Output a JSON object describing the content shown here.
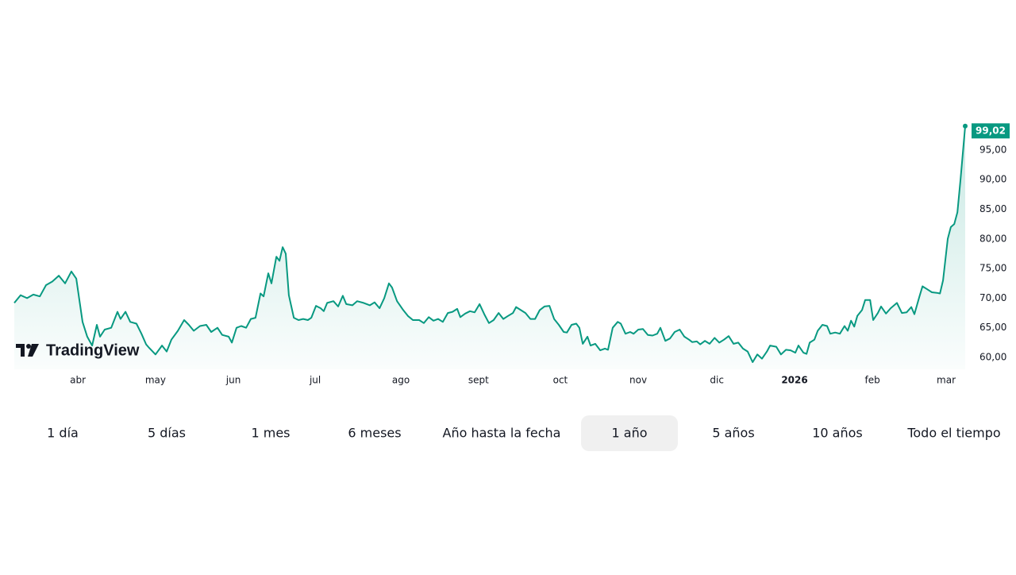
{
  "chart_data": {
    "type": "line",
    "watermark": "TradingView",
    "xlim": [
      0,
      365
    ],
    "xticks": [
      {
        "value": 24.4,
        "label": "abr"
      },
      {
        "value": 54.2,
        "label": "may"
      },
      {
        "value": 84.1,
        "label": "jun"
      },
      {
        "value": 115.5,
        "label": "jul"
      },
      {
        "value": 148.4,
        "label": "ago"
      },
      {
        "value": 178.2,
        "label": "sept"
      },
      {
        "value": 209.6,
        "label": "oct"
      },
      {
        "value": 239.5,
        "label": "nov"
      },
      {
        "value": 269.7,
        "label": "dic"
      },
      {
        "value": 299.5,
        "label": "2026"
      },
      {
        "value": 329.4,
        "label": "feb"
      },
      {
        "value": 357.7,
        "label": "mar"
      }
    ],
    "bold_xtick": "2026",
    "ylim": [
      58,
      100.2
    ],
    "yticks": [
      {
        "value": 60,
        "label": "60,00"
      },
      {
        "value": 65,
        "label": "65,00"
      },
      {
        "value": 70,
        "label": "70,00"
      },
      {
        "value": 75,
        "label": "75,00"
      },
      {
        "value": 80,
        "label": "80,00"
      },
      {
        "value": 85,
        "label": "85,00"
      },
      {
        "value": 90,
        "label": "90,00"
      },
      {
        "value": 95,
        "label": "95,00"
      }
    ],
    "last_label": "99,02",
    "series": [
      {
        "color": "#089981",
        "x": [
          0,
          2.4,
          4.9,
          7.3,
          9.8,
          12.2,
          14.6,
          17.1,
          19.5,
          21.9,
          23.8,
          26.2,
          28.0,
          29.9,
          31.7,
          32.9,
          34.7,
          37.2,
          39.6,
          40.8,
          42.7,
          44.5,
          46.9,
          48.8,
          50.6,
          51.8,
          54.2,
          56.7,
          58.5,
          60.3,
          62.8,
          65.2,
          67.0,
          68.9,
          71.3,
          73.7,
          75.6,
          78.0,
          79.8,
          82.3,
          83.5,
          85.3,
          87.1,
          89.0,
          90.8,
          92.6,
          94.5,
          95.7,
          97.5,
          98.7,
          100.6,
          101.8,
          103.0,
          104.2,
          105.4,
          107.3,
          109.1,
          110.9,
          112.7,
          114.0,
          115.8,
          117.6,
          118.8,
          120.1,
          122.5,
          124.3,
          126.1,
          127.4,
          129.8,
          131.6,
          134.1,
          136.5,
          138.3,
          140.2,
          142.0,
          143.8,
          145.0,
          146.9,
          149.3,
          151.1,
          153.0,
          155.4,
          157.2,
          159.1,
          160.9,
          162.7,
          164.5,
          166.4,
          168.2,
          170.0,
          171.2,
          173.1,
          174.9,
          176.7,
          178.6,
          180.4,
          182.2,
          184.0,
          185.9,
          187.7,
          189.5,
          191.4,
          192.6,
          194.4,
          196.2,
          198.1,
          199.9,
          201.7,
          203.5,
          205.4,
          207.2,
          209.0,
          210.9,
          212.1,
          213.9,
          215.7,
          216.9,
          218.2,
          220.0,
          221.2,
          223.0,
          224.9,
          226.7,
          227.9,
          229.7,
          231.6,
          232.8,
          234.6,
          236.4,
          237.7,
          239.5,
          241.3,
          243.2,
          245.0,
          246.8,
          248.0,
          249.9,
          251.7,
          253.5,
          255.4,
          257.2,
          259.0,
          260.2,
          262.0,
          263.3,
          265.1,
          266.9,
          268.8,
          270.6,
          272.4,
          274.2,
          276.1,
          277.9,
          279.7,
          281.5,
          283.4,
          285.2,
          287.0,
          288.9,
          290.1,
          292.5,
          294.3,
          296.2,
          298.0,
          299.8,
          301.0,
          302.9,
          304.1,
          305.3,
          307.1,
          308.4,
          310.2,
          312.0,
          313.2,
          315.1,
          316.9,
          318.7,
          319.9,
          321.2,
          322.4,
          323.6,
          325.4,
          326.6,
          328.5,
          329.7,
          331.5,
          332.7,
          334.6,
          336.4,
          338.8,
          340.7,
          342.5,
          344.3,
          345.5,
          347.4,
          348.6,
          350.4,
          352.2,
          354.1,
          355.3,
          356.5,
          358.3,
          359.5,
          360.8,
          362.0,
          363.2,
          365.0
        ],
        "values": [
          69.2,
          70.5,
          70.0,
          70.6,
          70.3,
          72.2,
          72.8,
          73.8,
          72.5,
          74.5,
          73.3,
          66,
          63.5,
          62,
          65.5,
          63.5,
          64.7,
          65,
          67.7,
          66.5,
          67.7,
          66,
          65.7,
          64,
          62.2,
          61.6,
          60.5,
          62,
          61,
          63,
          64.5,
          66.3,
          65.5,
          64.5,
          65.3,
          65.5,
          64.3,
          65,
          63.8,
          63.5,
          62.5,
          65,
          65.3,
          65,
          66.5,
          66.7,
          70.8,
          70.3,
          74.2,
          72.5,
          77,
          76.3,
          78.6,
          77.5,
          70.5,
          66.7,
          66.3,
          66.5,
          66.3,
          66.7,
          68.7,
          68.3,
          67.8,
          69.2,
          69.5,
          68.6,
          70.4,
          69,
          68.8,
          69.5,
          69.2,
          68.8,
          69.3,
          68.3,
          70,
          72.5,
          71.8,
          69.5,
          68,
          67,
          66.3,
          66.3,
          65.8,
          66.8,
          66.2,
          66.5,
          66,
          67.5,
          67.7,
          68.2,
          66.8,
          67.4,
          67.8,
          67.6,
          69,
          67.3,
          65.8,
          66.3,
          67.5,
          66.5,
          67,
          67.5,
          68.5,
          68,
          67.5,
          66.5,
          66.5,
          68,
          68.6,
          68.7,
          66.5,
          65.5,
          64.3,
          64.2,
          65.5,
          65.7,
          65,
          62.3,
          63.5,
          62,
          62.3,
          61.2,
          61.5,
          61.3,
          65,
          66,
          65.7,
          64,
          64.3,
          64,
          64.7,
          64.8,
          63.8,
          63.7,
          64,
          65,
          62.8,
          63.2,
          64.3,
          64.7,
          63.5,
          63,
          62.6,
          62.7,
          62.2,
          62.8,
          62.3,
          63.3,
          62.5,
          63,
          63.6,
          62.3,
          62.5,
          61.5,
          61,
          59.2,
          60.5,
          59.8,
          61,
          62,
          61.8,
          60.5,
          61.3,
          61.2,
          60.8,
          62,
          60.8,
          60.6,
          62.5,
          63,
          64.5,
          65.5,
          65.3,
          64,
          64.2,
          64,
          65.3,
          64.5,
          66.2,
          65.2,
          67,
          68,
          69.7,
          69.7,
          66.3,
          67.5,
          68.6,
          67.4,
          68.3,
          69.2,
          67.5,
          67.6,
          68.5,
          67.3,
          70.2,
          72,
          71.5,
          71,
          70.9,
          70.8,
          73,
          80,
          82,
          82.5,
          84.5,
          90,
          99.02
        ]
      }
    ]
  },
  "ranges": [
    "1 día",
    "5 días",
    "1 mes",
    "6 meses",
    "Año hasta la fecha",
    "1 año",
    "5 años",
    "10 años",
    "Todo el tiempo"
  ],
  "selected_range": "1 año"
}
